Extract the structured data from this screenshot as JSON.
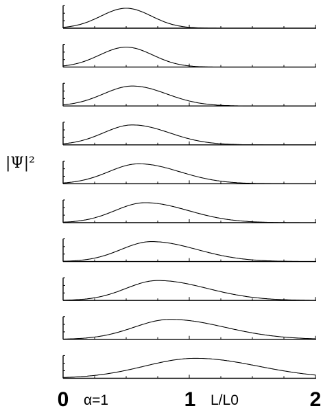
{
  "chart_data": {
    "type": "line",
    "ylabel": "|Ψ|²",
    "xlabel": "L/L0",
    "annotation": "α=1",
    "xlim": [
      0,
      2
    ],
    "xticks": [
      "0",
      "1",
      "2"
    ],
    "grid": false,
    "panels": [
      {
        "peak_x": 0.5,
        "width": 0.2,
        "skew": 0.0
      },
      {
        "peak_x": 0.5,
        "width": 0.21,
        "skew": 0.0
      },
      {
        "peak_x": 0.55,
        "width": 0.25,
        "skew": 0.08
      },
      {
        "peak_x": 0.55,
        "width": 0.26,
        "skew": 0.12
      },
      {
        "peak_x": 0.6,
        "width": 0.28,
        "skew": 0.15
      },
      {
        "peak_x": 0.65,
        "width": 0.29,
        "skew": 0.18
      },
      {
        "peak_x": 0.7,
        "width": 0.3,
        "skew": 0.2
      },
      {
        "peak_x": 0.75,
        "width": 0.32,
        "skew": 0.22
      },
      {
        "peak_x": 0.85,
        "width": 0.36,
        "skew": 0.2
      },
      {
        "peak_x": 1.05,
        "width": 0.45,
        "skew": 0.1
      }
    ]
  }
}
